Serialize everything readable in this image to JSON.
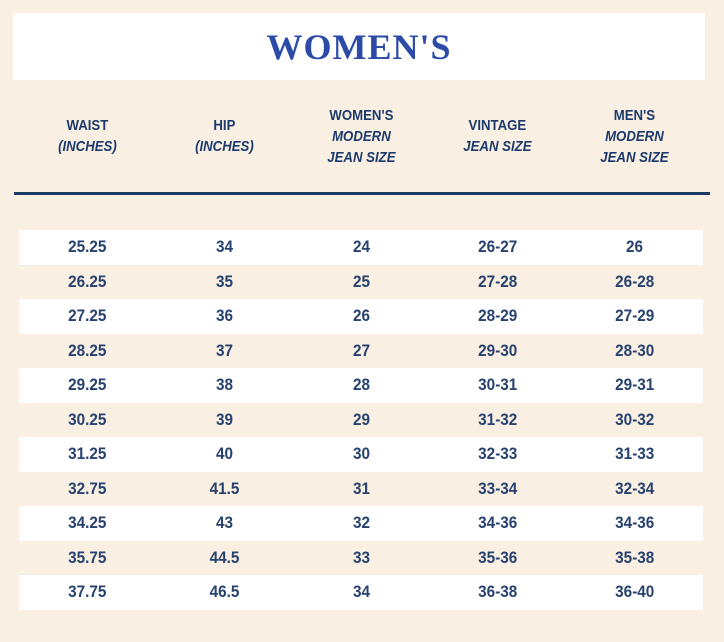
{
  "title": "WOMEN'S",
  "colors": {
    "background": "#f9efe3",
    "band": "#ffffff",
    "stripe": "#ffffff",
    "title_blue": "#2c4ba6",
    "header_navy": "#1c3a6b",
    "cell_navy": "#27426f",
    "divider_navy": "#1c3a66"
  },
  "chart_data": {
    "type": "table",
    "title": "WOMEN'S",
    "columns": [
      {
        "main": "WAIST",
        "sub": [
          "(INCHES)"
        ]
      },
      {
        "main": "HIP",
        "sub": [
          "(INCHES)"
        ]
      },
      {
        "main": "WOMEN'S",
        "sub": [
          "MODERN",
          "JEAN SIZE"
        ]
      },
      {
        "main": "VINTAGE",
        "sub": [
          "JEAN SIZE"
        ]
      },
      {
        "main": "MEN'S",
        "sub": [
          "MODERN",
          "JEAN SIZE"
        ]
      }
    ],
    "rows": [
      [
        "25.25",
        "34",
        "24",
        "26-27",
        "26"
      ],
      [
        "26.25",
        "35",
        "25",
        "27-28",
        "26-28"
      ],
      [
        "27.25",
        "36",
        "26",
        "28-29",
        "27-29"
      ],
      [
        "28.25",
        "37",
        "27",
        "29-30",
        "28-30"
      ],
      [
        "29.25",
        "38",
        "28",
        "30-31",
        "29-31"
      ],
      [
        "30.25",
        "39",
        "29",
        "31-32",
        "30-32"
      ],
      [
        "31.25",
        "40",
        "30",
        "32-33",
        "31-33"
      ],
      [
        "32.75",
        "41.5",
        "31",
        "33-34",
        "32-34"
      ],
      [
        "34.25",
        "43",
        "32",
        "34-36",
        "34-36"
      ],
      [
        "35.75",
        "44.5",
        "33",
        "35-36",
        "35-38"
      ],
      [
        "37.75",
        "46.5",
        "34",
        "36-38",
        "36-40"
      ]
    ]
  }
}
